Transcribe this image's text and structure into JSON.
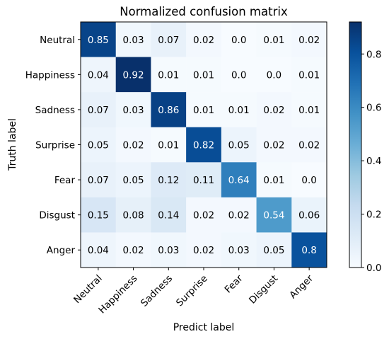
{
  "chart_data": {
    "type": "heatmap",
    "title": "Normalized confusion matrix",
    "xlabel": "Predict label",
    "ylabel": "Truth label",
    "x_categories": [
      "Neutral",
      "Happiness",
      "Sadness",
      "Surprise",
      "Fear",
      "Disgust",
      "Anger"
    ],
    "y_categories": [
      "Neutral",
      "Happiness",
      "Sadness",
      "Surprise",
      "Fear",
      "Disgust",
      "Anger"
    ],
    "values": [
      [
        0.85,
        0.03,
        0.07,
        0.02,
        0.0,
        0.01,
        0.02
      ],
      [
        0.04,
        0.92,
        0.01,
        0.01,
        0.0,
        0.0,
        0.01
      ],
      [
        0.07,
        0.03,
        0.86,
        0.01,
        0.01,
        0.02,
        0.01
      ],
      [
        0.05,
        0.02,
        0.01,
        0.82,
        0.05,
        0.02,
        0.02
      ],
      [
        0.07,
        0.05,
        0.12,
        0.11,
        0.64,
        0.01,
        0.0
      ],
      [
        0.15,
        0.08,
        0.14,
        0.02,
        0.02,
        0.54,
        0.06
      ],
      [
        0.04,
        0.02,
        0.03,
        0.02,
        0.03,
        0.05,
        0.8
      ]
    ],
    "value_labels": [
      [
        "0.85",
        "0.03",
        "0.07",
        "0.02",
        "0.0",
        "0.01",
        "0.02"
      ],
      [
        "0.04",
        "0.92",
        "0.01",
        "0.01",
        "0.0",
        "0.0",
        "0.01"
      ],
      [
        "0.07",
        "0.03",
        "0.86",
        "0.01",
        "0.01",
        "0.02",
        "0.01"
      ],
      [
        "0.05",
        "0.02",
        "0.01",
        "0.82",
        "0.05",
        "0.02",
        "0.02"
      ],
      [
        "0.07",
        "0.05",
        "0.12",
        "0.11",
        "0.64",
        "0.01",
        "0.0"
      ],
      [
        "0.15",
        "0.08",
        "0.14",
        "0.02",
        "0.02",
        "0.54",
        "0.06"
      ],
      [
        "0.04",
        "0.02",
        "0.03",
        "0.02",
        "0.03",
        "0.05",
        "0.8"
      ]
    ],
    "colorbar": {
      "range": [
        0,
        0.92
      ],
      "ticks": [
        0.0,
        0.2,
        0.4,
        0.6,
        0.8
      ],
      "tick_labels": [
        "0.0",
        "0.2",
        "0.4",
        "0.6",
        "0.8"
      ],
      "colormap": "Blues",
      "colors": [
        "#f7fbff",
        "#deebf7",
        "#c6dbef",
        "#9ecae1",
        "#6baed6",
        "#4292c6",
        "#2171b5",
        "#08519c",
        "#08306b"
      ]
    },
    "grid": false
  }
}
